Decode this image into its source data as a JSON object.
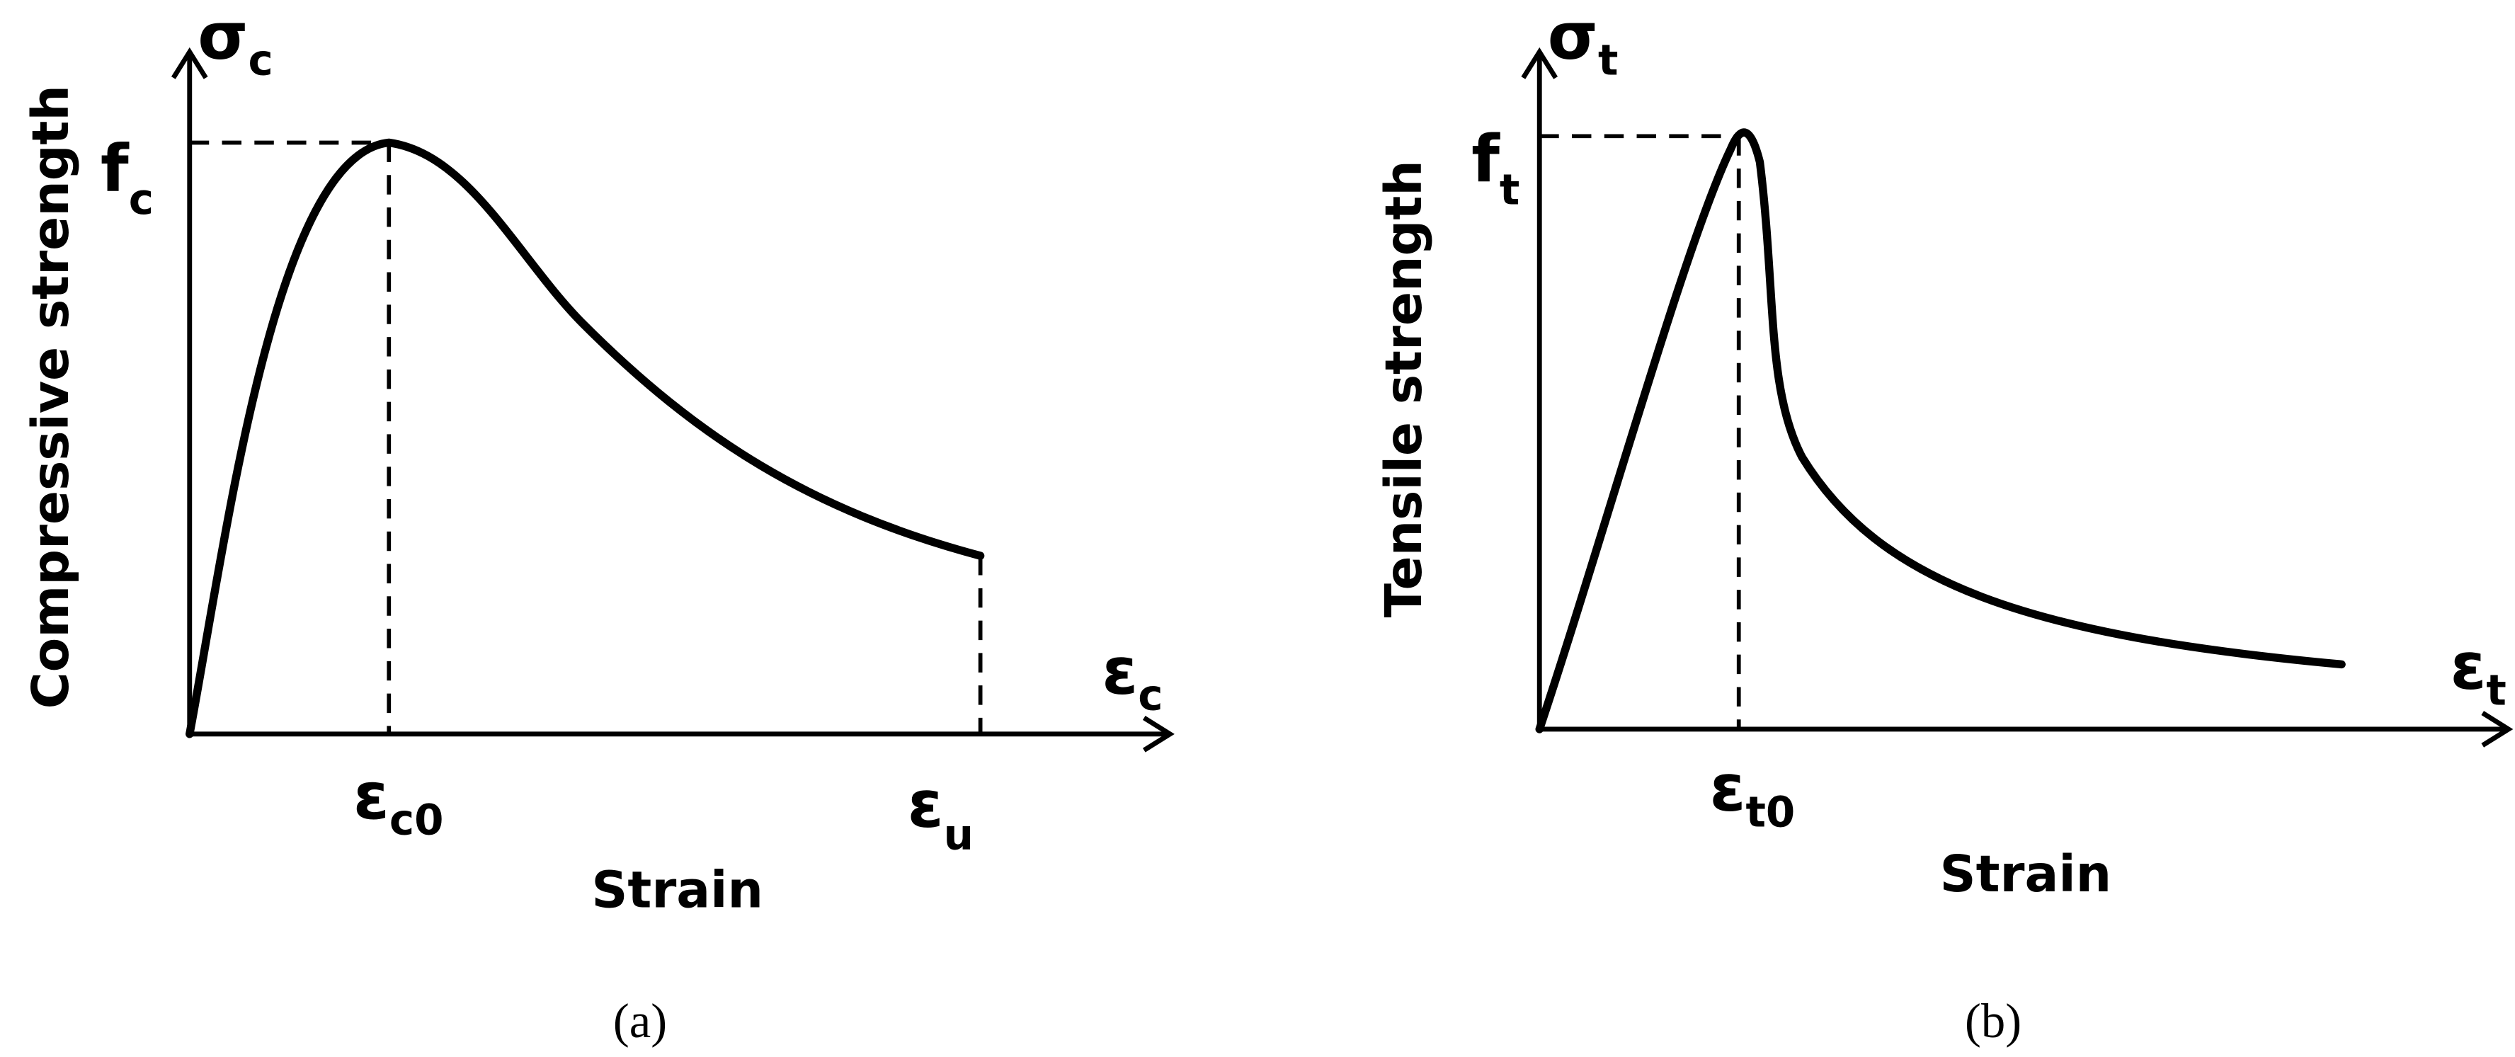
{
  "panels": [
    {
      "y_symbol": {
        "main": "σ",
        "sub": "c"
      },
      "peak_label": {
        "main": "f",
        "sub": "c"
      },
      "y_label": "Compressive strength",
      "x_symbol": {
        "main": "ε",
        "sub": "c"
      },
      "x_ticks": [
        {
          "main": "ε",
          "sub": "c0"
        },
        {
          "main": "ε",
          "sub": "u"
        }
      ],
      "x_label": "Strain",
      "caption": "(a)"
    },
    {
      "y_symbol": {
        "main": "σ",
        "sub": "t"
      },
      "peak_label": {
        "main": "f",
        "sub": "t"
      },
      "y_label": "Tensile strength",
      "x_symbol": {
        "main": "ε",
        "sub": "t"
      },
      "x_ticks": [
        {
          "main": "ε",
          "sub": "t0"
        }
      ],
      "x_label": "Strain",
      "caption": "(b)"
    }
  ]
}
